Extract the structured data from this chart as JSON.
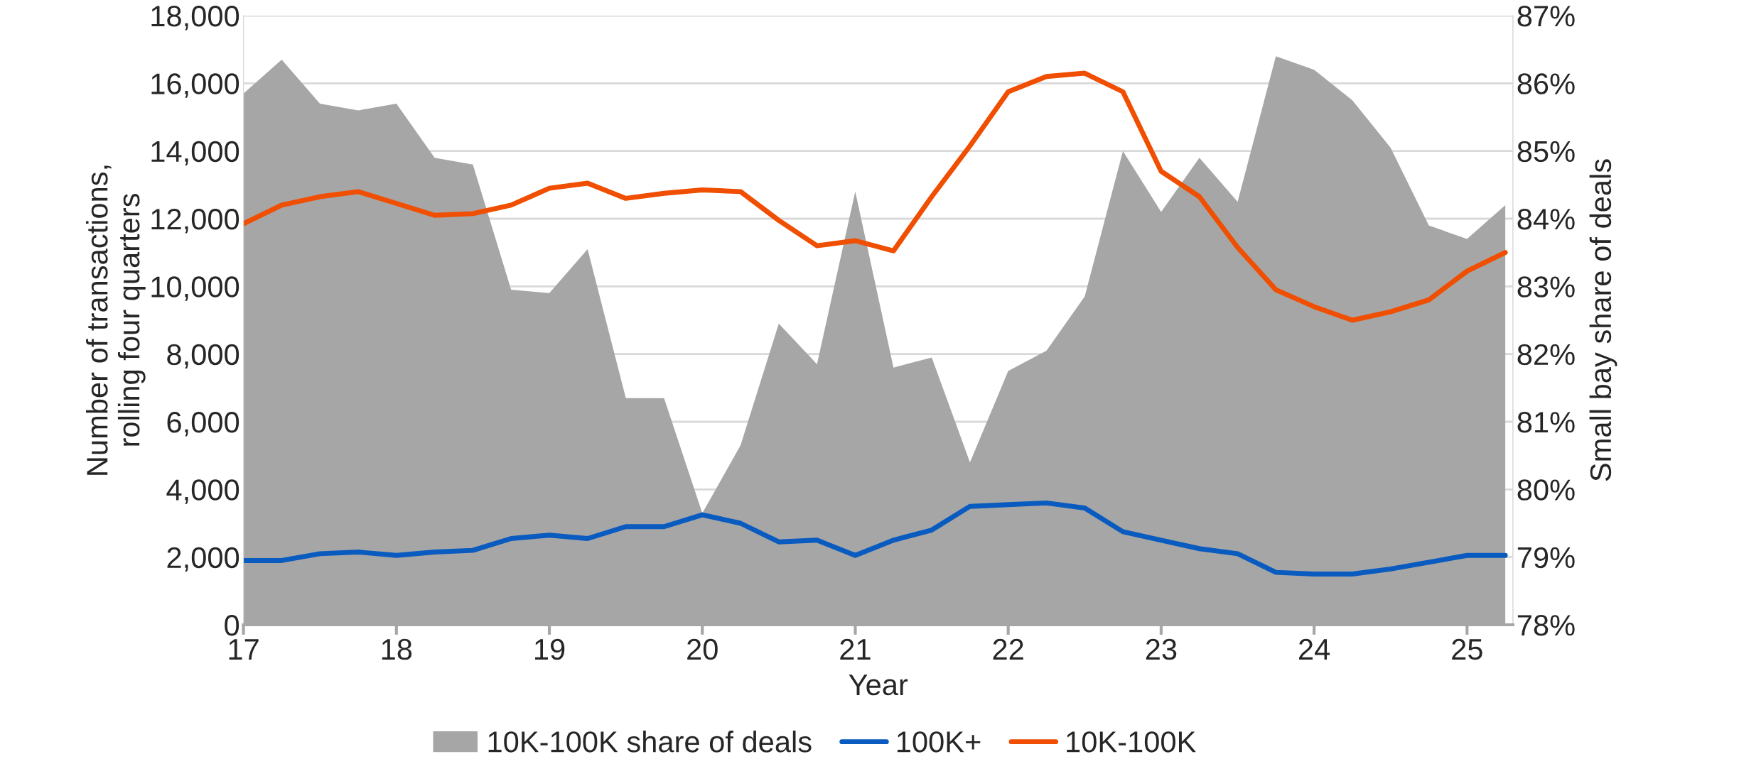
{
  "chart_data": {
    "type": "line",
    "xlabel": "Year",
    "ylabel": "Number of transactions,\nrolling four quarters",
    "y2label": "Small bay share of deals",
    "x": [
      17,
      17.25,
      17.5,
      17.75,
      18,
      18.25,
      18.5,
      18.75,
      19,
      19.25,
      19.5,
      19.75,
      20,
      20.25,
      20.5,
      20.75,
      21,
      21.25,
      21.5,
      21.75,
      22,
      22.25,
      22.5,
      22.75,
      23,
      23.25,
      23.5,
      23.75,
      24,
      24.25,
      24.5,
      24.75,
      25,
      25.25
    ],
    "series": [
      {
        "name": "10K-100K share of deals",
        "type": "area",
        "axis": "y2",
        "color": "#a6a6a6",
        "values": [
          85.85,
          86.35,
          85.7,
          85.6,
          85.7,
          84.9,
          84.8,
          82.95,
          82.9,
          83.55,
          81.35,
          81.35,
          79.65,
          80.65,
          82.45,
          81.85,
          84.4,
          81.8,
          81.95,
          80.4,
          81.75,
          82.05,
          82.85,
          85.0,
          84.1,
          84.9,
          84.25,
          86.4,
          86.2,
          85.75,
          85.05,
          83.9,
          83.7,
          84.2
        ]
      },
      {
        "name": "100K+",
        "color": "#0a5bc0",
        "values": [
          1900,
          1900,
          2100,
          2150,
          2050,
          2150,
          2200,
          2550,
          2650,
          2550,
          2900,
          2900,
          3250,
          3000,
          2450,
          2500,
          2050,
          2500,
          2800,
          3500,
          3550,
          3600,
          3450,
          2750,
          2500,
          2250,
          2100,
          1550,
          1500,
          1500,
          1650,
          1850,
          2050,
          2050
        ]
      },
      {
        "name": "10K-100K",
        "color": "#f04e00",
        "values": [
          11850,
          12400,
          12650,
          12800,
          12450,
          12100,
          12150,
          12400,
          12900,
          13050,
          12600,
          12750,
          12850,
          12800,
          11950,
          11200,
          11350,
          11050,
          12650,
          14150,
          15750,
          16200,
          16300,
          15750,
          13400,
          12650,
          11150,
          9900,
          9400,
          9000,
          9250,
          9600,
          10450,
          11000
        ]
      }
    ],
    "xlim": [
      17,
      25.3
    ],
    "xticks": [
      17,
      18,
      19,
      20,
      21,
      22,
      23,
      24,
      25
    ],
    "ylim": [
      0,
      18000
    ],
    "yticks": [
      {
        "value": 0,
        "label": "0"
      },
      {
        "value": 2000,
        "label": "2,000"
      },
      {
        "value": 4000,
        "label": "4,000"
      },
      {
        "value": 6000,
        "label": "6,000"
      },
      {
        "value": 8000,
        "label": "8,000"
      },
      {
        "value": 10000,
        "label": "10,000"
      },
      {
        "value": 12000,
        "label": "12,000"
      },
      {
        "value": 14000,
        "label": "14,000"
      },
      {
        "value": 16000,
        "label": "16,000"
      },
      {
        "value": 18000,
        "label": "18,000"
      }
    ],
    "y2lim": [
      78,
      87
    ],
    "y2ticks": [
      {
        "value": 78,
        "label": "78%"
      },
      {
        "value": 79,
        "label": "79%"
      },
      {
        "value": 80,
        "label": "80%"
      },
      {
        "value": 81,
        "label": "81%"
      },
      {
        "value": 82,
        "label": "82%"
      },
      {
        "value": 83,
        "label": "83%"
      },
      {
        "value": 84,
        "label": "84%"
      },
      {
        "value": 85,
        "label": "85%"
      },
      {
        "value": 86,
        "label": "86%"
      },
      {
        "value": 87,
        "label": "87%"
      }
    ],
    "grid": "y",
    "legend": "bottom",
    "line_style": "solid",
    "marker": "none"
  }
}
